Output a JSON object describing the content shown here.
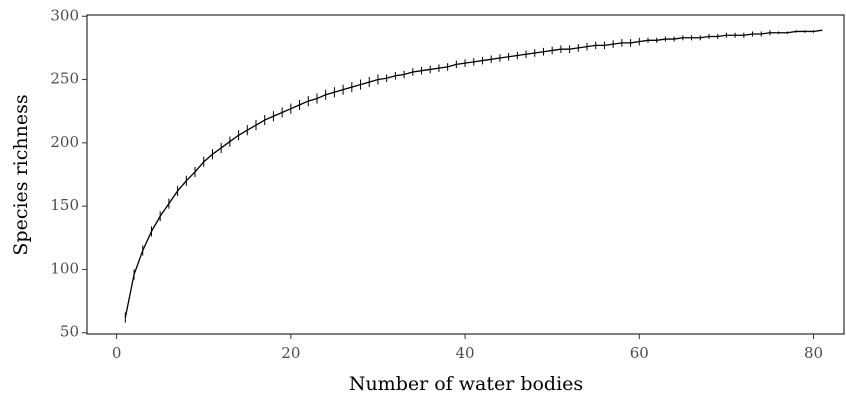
{
  "chart_data": {
    "type": "line",
    "x_label": "Number of water bodies",
    "y_label": "Species richness",
    "x": [
      1,
      2,
      3,
      4,
      5,
      6,
      7,
      8,
      9,
      10,
      11,
      12,
      13,
      14,
      15,
      16,
      17,
      18,
      19,
      20,
      21,
      22,
      23,
      24,
      25,
      26,
      27,
      28,
      29,
      30,
      31,
      32,
      33,
      34,
      35,
      36,
      37,
      38,
      39,
      40,
      41,
      42,
      43,
      44,
      45,
      46,
      47,
      48,
      49,
      50,
      51,
      52,
      53,
      54,
      55,
      56,
      57,
      58,
      59,
      60,
      61,
      62,
      63,
      64,
      65,
      66,
      67,
      68,
      69,
      70,
      71,
      72,
      73,
      74,
      75,
      76,
      77,
      78,
      79,
      80,
      81
    ],
    "values": [
      62,
      96,
      115,
      130,
      142,
      152,
      162,
      170,
      177,
      185,
      191,
      196,
      201,
      206,
      210,
      214,
      218,
      221,
      224,
      227,
      230,
      233,
      235,
      238,
      240,
      242,
      244,
      246,
      248,
      250,
      251,
      253,
      254,
      256,
      257,
      258,
      259,
      260,
      262,
      263,
      264,
      265,
      266,
      267,
      268,
      269,
      270,
      271,
      272,
      273,
      274,
      274,
      275,
      276,
      277,
      277,
      278,
      279,
      279,
      280,
      281,
      281,
      282,
      282,
      283,
      283,
      283,
      284,
      284,
      285,
      285,
      285,
      286,
      286,
      287,
      287,
      287,
      288,
      288,
      288,
      289
    ],
    "errors": [
      4,
      4,
      4,
      4,
      4,
      4,
      4,
      4,
      4,
      4,
      4,
      4,
      4,
      4,
      4,
      4,
      4,
      4,
      4,
      4,
      4,
      4,
      4,
      4,
      4,
      4,
      4,
      4,
      4,
      4,
      3,
      3,
      3,
      3,
      3,
      3,
      3,
      3,
      3,
      3,
      3,
      3,
      3,
      3,
      3,
      3,
      3,
      3,
      3,
      3,
      3,
      3,
      3,
      3,
      3,
      3,
      3,
      3,
      3,
      3,
      2,
      2,
      2,
      2,
      2,
      2,
      2,
      2,
      2,
      2,
      2,
      2,
      2,
      2,
      2,
      1,
      1,
      1,
      1,
      1,
      0
    ],
    "color": "#000000",
    "xlim": [
      -3.4,
      83.5
    ],
    "ylim": [
      49,
      301
    ],
    "xticks": [
      0,
      20,
      40,
      60,
      80
    ],
    "yticks": [
      50,
      100,
      150,
      200,
      250,
      300
    ]
  }
}
